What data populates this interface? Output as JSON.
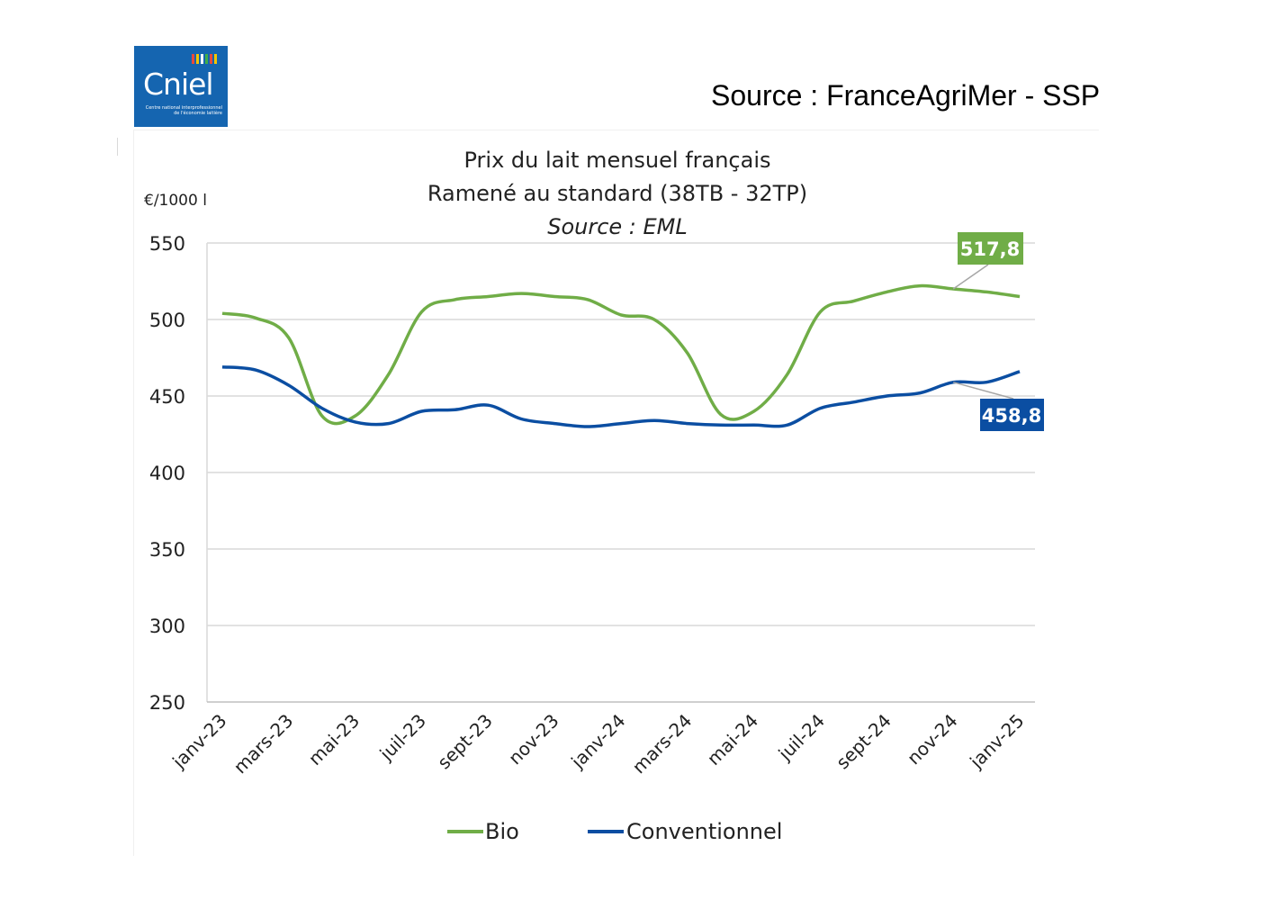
{
  "header": {
    "logo_text": "Cniel",
    "logo_subtitle": "Centre national interprofessionnel de l'économie laitière",
    "source": "Source : FranceAgriMer - SSP"
  },
  "colors": {
    "bio": "#70ad47",
    "conventionnel": "#0b4ea2",
    "grid": "#d9d9d9",
    "logo_bg": "#1565b0"
  },
  "chart_data": {
    "type": "line",
    "title_lines": [
      "Prix du lait mensuel français",
      "Ramené au standard (38TB - 32TP)"
    ],
    "subtitle": "Source : EML",
    "ylabel": "€/1000 l",
    "ylim": [
      250,
      550
    ],
    "yticks": [
      250,
      300,
      350,
      400,
      450,
      500,
      550
    ],
    "grid": true,
    "legend_position": "bottom",
    "categories": [
      "janv-23",
      "févr-23",
      "mars-23",
      "avr-23",
      "mai-23",
      "juin-23",
      "juil-23",
      "août-23",
      "sept-23",
      "oct-23",
      "nov-23",
      "déc-23",
      "janv-24",
      "févr-24",
      "mars-24",
      "avr-24",
      "mai-24",
      "juin-24",
      "juil-24",
      "août-24",
      "sept-24",
      "oct-24",
      "nov-24",
      "déc-24",
      "janv-25"
    ],
    "tick_labels": [
      "janv-23",
      "mars-23",
      "mai-23",
      "juil-23",
      "sept-23",
      "nov-23",
      "janv-24",
      "mars-24",
      "mai-24",
      "juil-24",
      "sept-24",
      "nov-24",
      "janv-25"
    ],
    "series": [
      {
        "name": "Bio",
        "color": "#70ad47",
        "values": [
          504,
          501,
          488,
          437,
          437,
          464,
          505,
          513,
          515,
          517,
          515,
          513,
          503,
          500,
          478,
          438,
          440,
          464,
          505,
          512,
          518,
          522,
          520,
          518,
          515
        ]
      },
      {
        "name": "Conventionnel",
        "color": "#0b4ea2",
        "values": [
          469,
          467,
          457,
          442,
          433,
          432,
          440,
          441,
          444,
          435,
          432,
          430,
          432,
          434,
          432,
          431,
          431,
          431,
          442,
          446,
          450,
          452,
          459,
          459,
          466
        ]
      }
    ],
    "annotations": [
      {
        "series": "Bio",
        "text": "517,8",
        "color": "#70ad47"
      },
      {
        "series": "Conventionnel",
        "text": "458,8",
        "color": "#0b4ea2"
      }
    ]
  }
}
